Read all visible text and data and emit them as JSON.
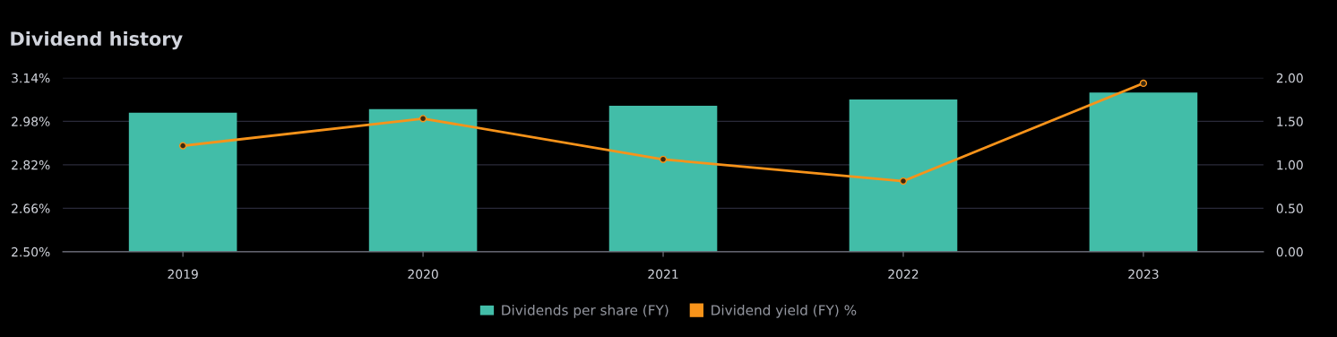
{
  "chart_data": {
    "type": "bar",
    "title": "Dividend history",
    "categories": [
      "2019",
      "2020",
      "2021",
      "2022",
      "2023"
    ],
    "series": [
      {
        "name": "Dividends per share (FY)",
        "axis": "y2",
        "color": "#42bda8",
        "values": [
          1.6,
          1.64,
          1.68,
          1.75,
          1.83
        ]
      },
      {
        "name": "Dividend yield (FY) %",
        "type": "line",
        "color": "#f7931a",
        "marker": "circle",
        "line_style": "solid",
        "values": [
          2.89,
          2.99,
          2.84,
          2.76,
          3.12
        ]
      }
    ],
    "ylim": [
      2.5,
      3.14
    ],
    "yticks": [
      {
        "value": 2.5,
        "label": "2.50%"
      },
      {
        "value": 2.66,
        "label": "2.66%"
      },
      {
        "value": 2.82,
        "label": "2.82%"
      },
      {
        "value": 2.98,
        "label": "2.98%"
      },
      {
        "value": 3.14,
        "label": "3.14%"
      }
    ],
    "y2lim": [
      0,
      2
    ],
    "y2ticks": [
      {
        "value": 0,
        "label": "0.00"
      },
      {
        "value": 0.5,
        "label": "0.50"
      },
      {
        "value": 1,
        "label": "1.00"
      },
      {
        "value": 1.5,
        "label": "1.50"
      },
      {
        "value": 2,
        "label": "2.00"
      }
    ],
    "grid": "y",
    "legend": "bottom"
  }
}
